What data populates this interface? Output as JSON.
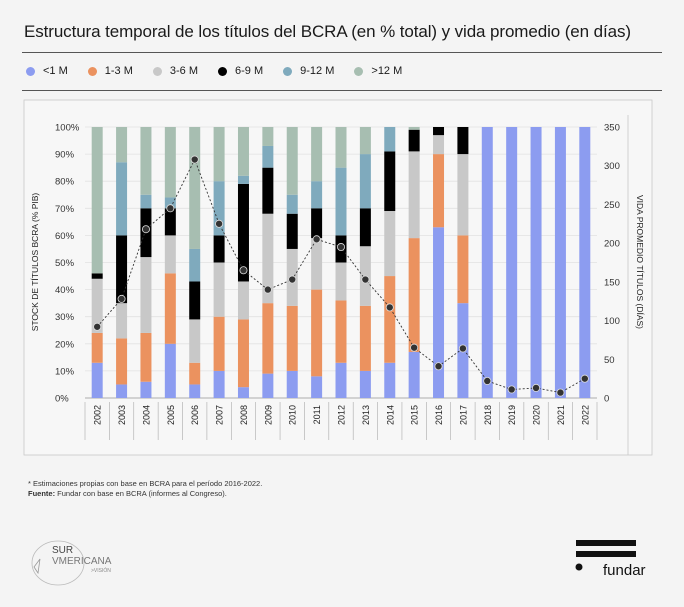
{
  "title": "Estructura temporal de los títulos del BCRA (en % total) y vida promedio (en días)",
  "chart_data": {
    "type": "bar+line",
    "title": "Estructura temporal de los títulos del BCRA (en % total) y vida promedio (en días)",
    "categories": [
      "2002",
      "2003",
      "2004",
      "2005",
      "2006",
      "2007",
      "2008",
      "2009",
      "2010",
      "2011",
      "2012",
      "2013",
      "2014",
      "2015",
      "2016",
      "2017",
      "2018",
      "2019",
      "2020",
      "2021",
      "2022"
    ],
    "ylabel": "STOCK DE TÍTULOS BCRA (% PIB)",
    "y2label": "VIDA PROMEDIO TÍTULOS (DÍAS)",
    "ylim": [
      0,
      100
    ],
    "y2lim": [
      0,
      350
    ],
    "yticks": [
      "0%",
      "10%",
      "20%",
      "30%",
      "40%",
      "50%",
      "60%",
      "70%",
      "80%",
      "90%",
      "100%"
    ],
    "y2ticks": [
      "0",
      "50",
      "100",
      "150",
      "200",
      "250",
      "300",
      "350"
    ],
    "grid": true,
    "legend_position": "top",
    "stacked_series": [
      {
        "name": "<1 M",
        "color": "#8c9cf0",
        "values": [
          13,
          5,
          6,
          20,
          5,
          10,
          4,
          9,
          10,
          8,
          13,
          10,
          13,
          17,
          63,
          35,
          100,
          100,
          100,
          100,
          100
        ]
      },
      {
        "name": "1-3 M",
        "color": "#eb925f",
        "values": [
          11,
          17,
          18,
          26,
          8,
          20,
          25,
          26,
          24,
          32,
          23,
          24,
          32,
          42,
          27,
          25,
          0,
          0,
          0,
          0,
          0
        ]
      },
      {
        "name": "3-6 M",
        "color": "#c8c8c8",
        "values": [
          20,
          13,
          28,
          14,
          16,
          20,
          14,
          33,
          21,
          19,
          14,
          22,
          24,
          32,
          7,
          30,
          0,
          0,
          0,
          0,
          0
        ]
      },
      {
        "name": "6-9 M",
        "color": "#000000",
        "values": [
          2,
          25,
          18,
          10,
          14,
          10,
          36,
          17,
          13,
          11,
          10,
          14,
          22,
          8,
          3,
          10,
          0,
          0,
          0,
          0,
          0
        ]
      },
      {
        "name": "9-12 M",
        "color": "#7faabd",
        "values": [
          0,
          27,
          5,
          4,
          12,
          20,
          3,
          8,
          7,
          10,
          25,
          20,
          9,
          0,
          0,
          0,
          0,
          0,
          0,
          0,
          0
        ]
      },
      {
        "name": ">12 M",
        "color": "#a7beb1",
        "values": [
          54,
          13,
          25,
          26,
          45,
          20,
          18,
          7,
          25,
          20,
          15,
          10,
          0,
          1,
          0,
          0,
          0,
          0,
          0,
          0,
          0
        ]
      }
    ],
    "line_series": {
      "axis": "right",
      "color": "#333333",
      "values": [
        92,
        128,
        218,
        245,
        308,
        225,
        165,
        140,
        153,
        205,
        195,
        153,
        117,
        65,
        41,
        64,
        22,
        11,
        13,
        7,
        25
      ]
    }
  },
  "footnote": "* Estimaciones propias con base en BCRA para el período 2016-2022.",
  "source_label": "Fuente:",
  "source_text": " Fundar con base en BCRA (informes al Congreso).",
  "logos": {
    "left": "SUR AMERICANA >VISIÓN",
    "right": "fundar"
  }
}
